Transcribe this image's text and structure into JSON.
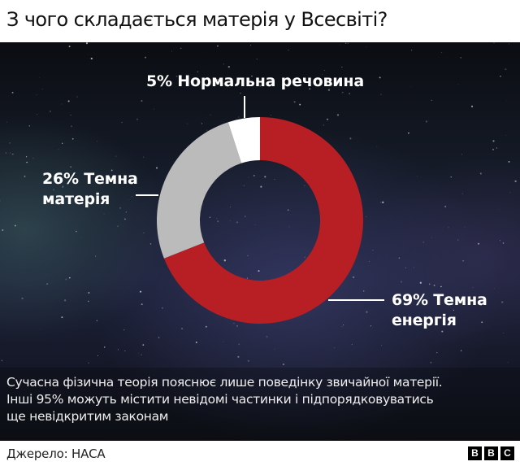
{
  "header": {
    "title": "З чого складається матерія у Всесвіті?"
  },
  "labels": {
    "normal_matter": "5% Нормальна речовина",
    "dark_matter_line1": "26% Темна",
    "dark_matter_line2": "матерія",
    "dark_energy_line1": "69% Темна",
    "dark_energy_line2": "енергія"
  },
  "note": {
    "line1": "Сучасна фізична теорія пояснює лише поведінку звичайної матерії.",
    "line2": "Інші 95% можуть містити невідомі частинки і підпорядковуватись",
    "line3": "ще невідкритим законам"
  },
  "footer": {
    "source": "Джерело: НАСА",
    "logo": [
      "B",
      "B",
      "C"
    ]
  },
  "colors": {
    "dark_energy": "#b81f25",
    "dark_matter": "#bbbbbb",
    "normal_matter": "#ffffff",
    "background": "#161b2a"
  },
  "chart_data": {
    "type": "pie",
    "subtype": "donut",
    "title": "З чого складається матерія у Всесвіті?",
    "categories": [
      "Темна енергія",
      "Темна матерія",
      "Нормальна речовина"
    ],
    "values": [
      69,
      26,
      5
    ],
    "unit": "%",
    "colors": [
      "#b81f25",
      "#bbbbbb",
      "#ffffff"
    ],
    "start_angle_deg": 0,
    "direction": "clockwise",
    "annotations": [
      "5% Нормальна речовина",
      "26% Темна матерія",
      "69% Темна енергія"
    ],
    "source": "Джерело: НАСА"
  }
}
